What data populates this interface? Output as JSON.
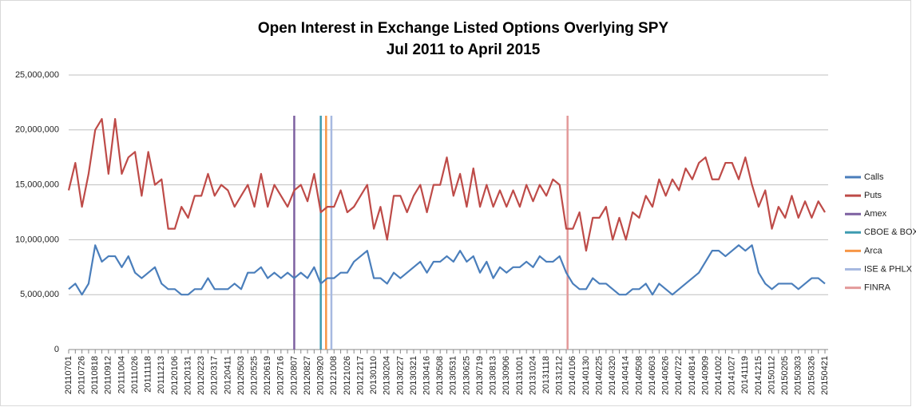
{
  "chart_data": {
    "type": "line",
    "title": "Open Interest in Exchange Listed Options Overlying SPY",
    "subtitle": "Jul 2011 to April 2015",
    "categories": [
      "20110701",
      null,
      "20110726",
      null,
      "20110818",
      null,
      "20110912",
      null,
      "20111004",
      null,
      "20111026",
      null,
      "20111118",
      null,
      "20111213",
      null,
      "20120106",
      null,
      "20120131",
      null,
      "20120223",
      null,
      "20120317",
      null,
      "20120411",
      null,
      "20120503",
      null,
      "20120525",
      null,
      "20120619",
      null,
      "20120716",
      null,
      "20120807",
      null,
      "20120827",
      null,
      "20120920",
      null,
      "20121008",
      null,
      "20121026",
      null,
      "20121217",
      null,
      "20130110",
      null,
      "20130204",
      null,
      "20130227",
      null,
      "20130321",
      null,
      "20130416",
      null,
      "20130508",
      null,
      "20130531",
      null,
      "20130625",
      null,
      "20130719",
      null,
      "20130813",
      null,
      "20130906",
      null,
      "20131001",
      null,
      "20131024",
      null,
      "20131118",
      null,
      "20131212",
      null,
      "20140106",
      null,
      "20140130",
      null,
      "20140225",
      null,
      "20140320",
      null,
      "20140414",
      null,
      "20140508",
      null,
      "20140603",
      null,
      "20140626",
      null,
      "20140722",
      null,
      "20140814",
      null,
      "20140909",
      null,
      "20141002",
      null,
      "20141027",
      null,
      "20141119",
      null,
      "20141215",
      null,
      "20150112",
      null,
      "20150205",
      null,
      "20150303",
      null,
      "20150326",
      null,
      "20150421"
    ],
    "series": [
      {
        "name": "Calls",
        "color": "#4a7ebb",
        "values": [
          5500000,
          6000000,
          5000000,
          6000000,
          9500000,
          8000000,
          8500000,
          8500000,
          7500000,
          8500000,
          7000000,
          6500000,
          7000000,
          7500000,
          6000000,
          5500000,
          5500000,
          5000000,
          5000000,
          5500000,
          5500000,
          6500000,
          5500000,
          5500000,
          5500000,
          6000000,
          5500000,
          7000000,
          7000000,
          7500000,
          6500000,
          7000000,
          6500000,
          7000000,
          6500000,
          7000000,
          6500000,
          7500000,
          6000000,
          6500000,
          6500000,
          7000000,
          7000000,
          8000000,
          8500000,
          9000000,
          6500000,
          6500000,
          6000000,
          7000000,
          6500000,
          7000000,
          7500000,
          8000000,
          7000000,
          8000000,
          8000000,
          8500000,
          8000000,
          9000000,
          8000000,
          8500000,
          7000000,
          8000000,
          6500000,
          7500000,
          7000000,
          7500000,
          7500000,
          8000000,
          7500000,
          8500000,
          8000000,
          8000000,
          8500000,
          7000000,
          6000000,
          5500000,
          5500000,
          6500000,
          6000000,
          6000000,
          5500000,
          5000000,
          5000000,
          5500000,
          5500000,
          6000000,
          5000000,
          6000000,
          5500000,
          5000000,
          5500000,
          6000000,
          6500000,
          7000000,
          8000000,
          9000000,
          9000000,
          8500000,
          9000000,
          9500000,
          9000000,
          9500000,
          7000000,
          6000000,
          5500000,
          6000000,
          6000000,
          6000000,
          5500000,
          6000000,
          6500000,
          6500000,
          6000000
        ]
      },
      {
        "name": "Puts",
        "color": "#be4b48",
        "values": [
          14500000,
          17000000,
          13000000,
          16000000,
          20000000,
          21000000,
          16000000,
          21000000,
          16000000,
          17500000,
          18000000,
          14000000,
          18000000,
          15000000,
          15500000,
          11000000,
          11000000,
          13000000,
          12000000,
          14000000,
          14000000,
          16000000,
          14000000,
          15000000,
          14500000,
          13000000,
          14000000,
          15000000,
          13000000,
          16000000,
          13000000,
          15000000,
          14000000,
          13000000,
          14500000,
          15000000,
          13500000,
          16000000,
          12500000,
          13000000,
          13000000,
          14500000,
          12500000,
          13000000,
          14000000,
          15000000,
          11000000,
          13000000,
          10000000,
          14000000,
          14000000,
          12500000,
          14000000,
          15000000,
          12500000,
          15000000,
          15000000,
          17500000,
          14000000,
          16000000,
          13000000,
          16500000,
          13000000,
          15000000,
          13000000,
          14500000,
          13000000,
          14500000,
          13000000,
          15000000,
          13500000,
          15000000,
          14000000,
          15500000,
          15000000,
          11000000,
          11000000,
          12500000,
          9000000,
          12000000,
          12000000,
          13000000,
          10000000,
          12000000,
          10000000,
          12500000,
          12000000,
          14000000,
          13000000,
          15500000,
          14000000,
          15500000,
          14500000,
          16500000,
          15500000,
          17000000,
          17500000,
          15500000,
          15500000,
          17000000,
          17000000,
          15500000,
          17500000,
          15000000,
          13000000,
          14500000,
          11000000,
          13000000,
          12000000,
          14000000,
          12000000,
          13500000,
          12000000,
          13500000,
          12500000
        ]
      }
    ],
    "markers": [
      {
        "name": "Amex",
        "color": "#7d60a0",
        "at": 34
      },
      {
        "name": "CBOE & BOX",
        "color": "#3d9bb0",
        "at": 38
      },
      {
        "name": "Arca",
        "color": "#f79646",
        "at": 38.8
      },
      {
        "name": "ISE & PHLX",
        "color": "#a7b9e0",
        "at": 39.6
      },
      {
        "name": "FINRA",
        "color": "#e39a9a",
        "at": 75.2
      }
    ],
    "ylim": [
      0,
      25000000
    ],
    "yticks": [
      0,
      {
        "value": 5000000,
        "label": "5,000,000"
      },
      {
        "value": 10000000,
        "label": "10,000,000"
      },
      {
        "value": 15000000,
        "label": "15,000,000"
      },
      {
        "value": 20000000,
        "label": "20,000,000"
      },
      {
        "value": 25000000,
        "label": "25,000,000"
      }
    ],
    "grid": true,
    "legend": "right"
  }
}
